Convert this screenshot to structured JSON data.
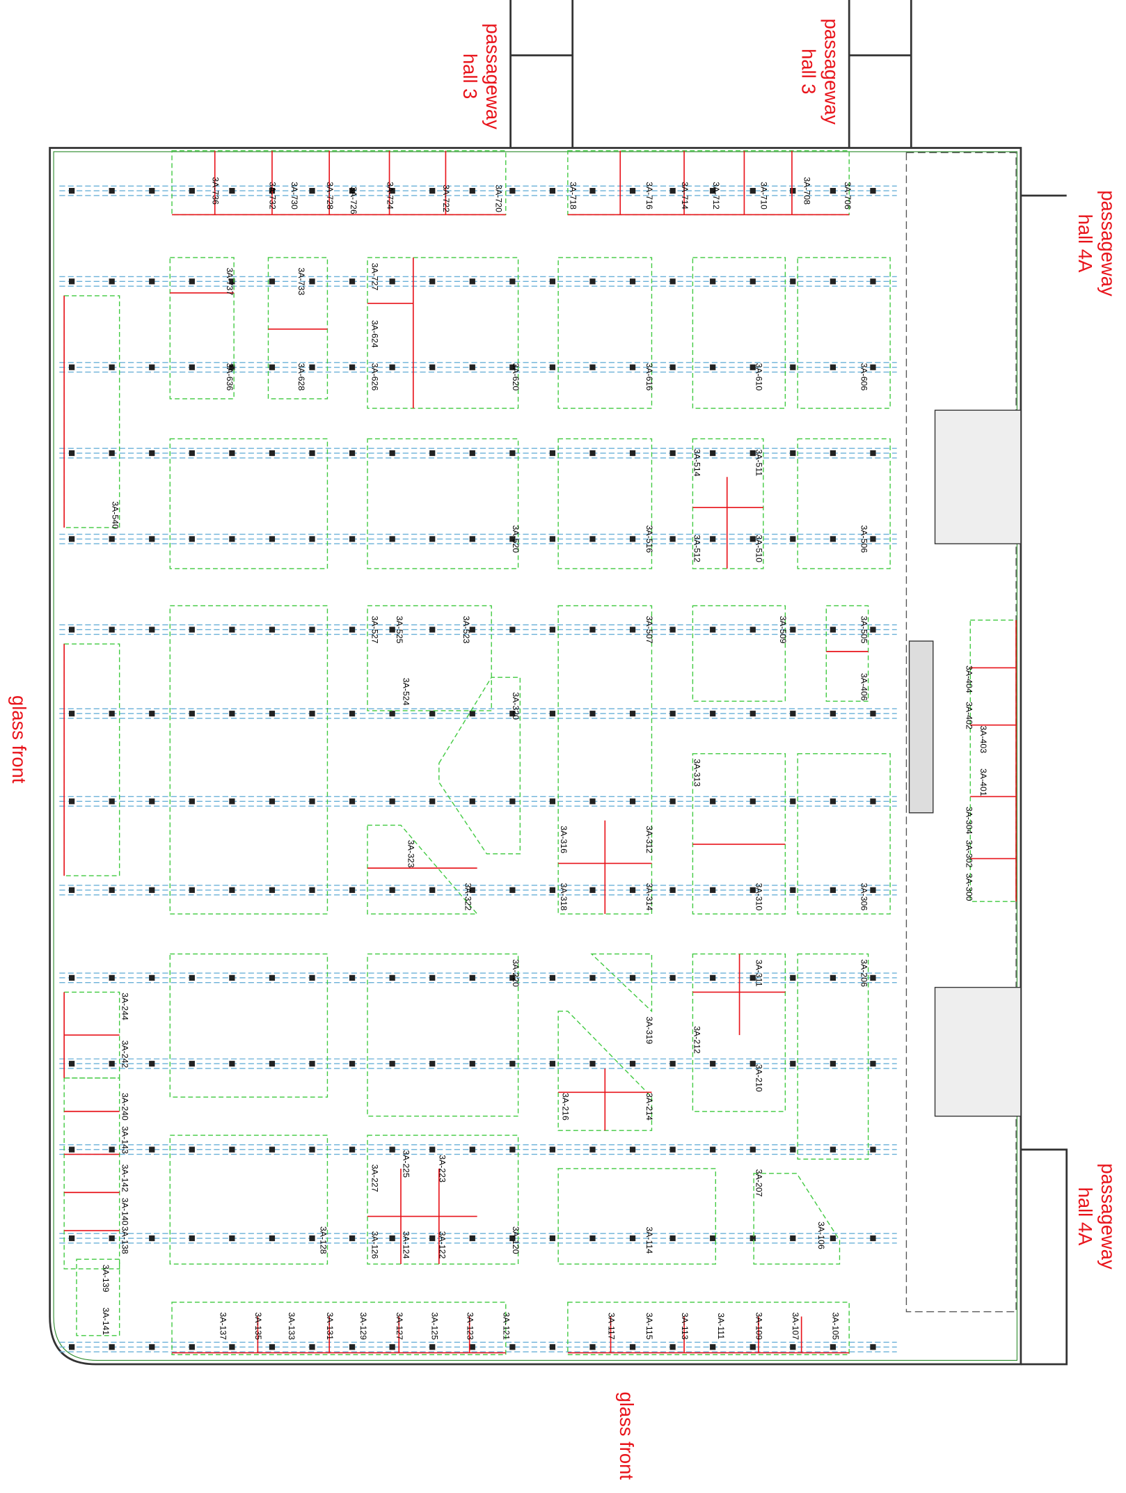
{
  "annotations": [
    {
      "lines": [
        "passageway",
        "hall 3"
      ]
    },
    {
      "lines": [
        "passageway",
        "hall 3"
      ]
    },
    {
      "lines": [
        "passageway",
        "hall 4A"
      ]
    },
    {
      "lines": [
        "passageway",
        "hall 4A"
      ]
    },
    {
      "lines": [
        "glass front"
      ]
    },
    {
      "lines": [
        "glass front"
      ]
    }
  ],
  "booths": [
    "3A-736",
    "3A-732",
    "3A-730",
    "3A-728",
    "3A-726",
    "3A-724",
    "3A-722",
    "3A-720",
    "3A-718",
    "3A-716",
    "3A-714",
    "3A-712",
    "3A-710",
    "3A-708",
    "3A-706",
    "3A-737",
    "3A-733",
    "3A-727",
    "3A-624",
    "3A-636",
    "3A-628",
    "3A-626",
    "3A-620",
    "3A-616",
    "3A-610",
    "3A-606",
    "3A-540",
    "3A-520",
    "3A-516",
    "3A-514",
    "3A-511",
    "3A-512",
    "3A-510",
    "3A-506",
    "3A-527",
    "3A-525",
    "3A-523",
    "3A-507",
    "3A-509",
    "3A-505",
    "3A-406",
    "3A-524",
    "3A-320",
    "3A-313",
    "3A-323",
    "3A-316",
    "3A-312",
    "3A-322",
    "3A-318",
    "3A-314",
    "3A-310",
    "3A-306",
    "3A-404",
    "3A-402",
    "3A-403",
    "3A-401",
    "3A-304",
    "3A-302",
    "3A-300",
    "3A-244",
    "3A-242",
    "3A-240",
    "3A-143",
    "3A-142",
    "3A-140",
    "3A-138",
    "3A-139",
    "3A-141",
    "3A-220",
    "3A-311",
    "3A-206",
    "3A-319",
    "3A-212",
    "3A-210",
    "3A-214",
    "3A-216",
    "3A-227",
    "3A-225",
    "3A-223",
    "3A-207",
    "3A-128",
    "3A-126",
    "3A-124",
    "3A-122",
    "3A-120",
    "3A-114",
    "3A-106",
    "3A-137",
    "3A-135",
    "3A-133",
    "3A-131",
    "3A-129",
    "3A-127",
    "3A-125",
    "3A-123",
    "3A-121",
    "3A-117",
    "3A-115",
    "3A-113",
    "3A-111",
    "3A-109",
    "3A-107",
    "3A-105"
  ]
}
